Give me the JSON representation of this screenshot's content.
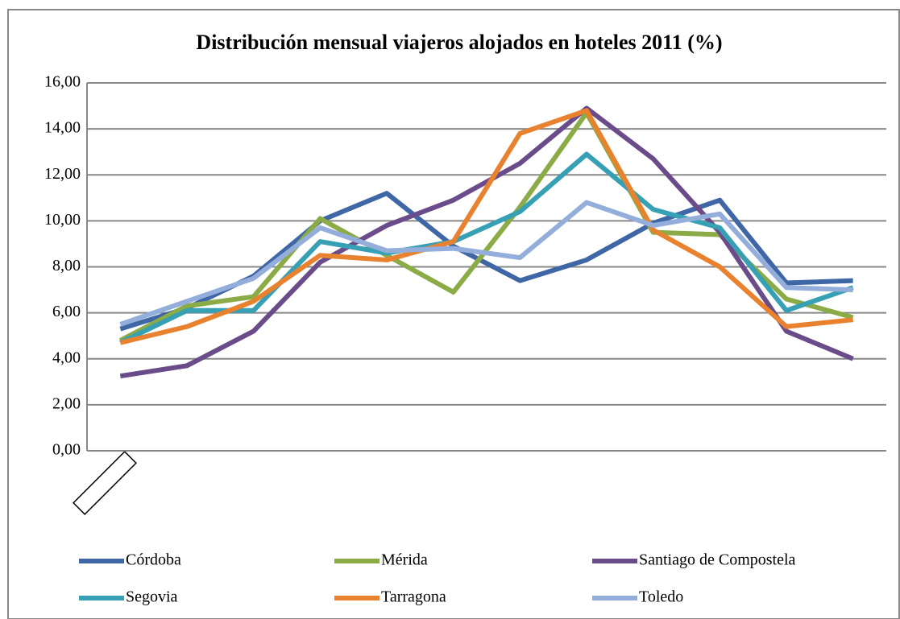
{
  "chart_data": {
    "type": "line",
    "title": "Distribución mensual viajeros alojados en hoteles 2011 (%)",
    "categories": [
      null,
      null,
      null,
      null,
      null,
      null,
      null,
      null,
      null,
      null,
      null,
      null
    ],
    "series": [
      {
        "name": "Córdoba",
        "color": "#3f67a6",
        "values": [
          5.3,
          6.2,
          7.6,
          10.0,
          11.2,
          8.9,
          7.4,
          8.3,
          9.9,
          10.9,
          7.3,
          7.4
        ]
      },
      {
        "name": "Mérida",
        "color": "#8aab45",
        "values": [
          4.8,
          6.3,
          6.7,
          10.1,
          8.5,
          6.9,
          10.6,
          14.7,
          9.5,
          9.4,
          6.6,
          5.8
        ]
      },
      {
        "name": "Santiago de Compostela",
        "color": "#6b4c8a",
        "values": [
          3.25,
          3.7,
          5.2,
          8.2,
          9.8,
          10.9,
          12.5,
          14.9,
          12.7,
          9.5,
          5.2,
          4.0
        ]
      },
      {
        "name": "Segovia",
        "color": "#37a0b5",
        "values": [
          4.7,
          6.1,
          6.1,
          9.1,
          8.6,
          9.1,
          10.4,
          12.9,
          10.5,
          9.7,
          6.1,
          7.1
        ]
      },
      {
        "name": "Tarragona",
        "color": "#e8822f",
        "values": [
          4.7,
          5.4,
          6.5,
          8.5,
          8.3,
          9.1,
          13.8,
          14.8,
          9.6,
          8.0,
          5.4,
          5.7
        ]
      },
      {
        "name": "Toledo",
        "color": "#93aedb",
        "values": [
          5.5,
          6.5,
          7.5,
          9.7,
          8.7,
          8.8,
          8.4,
          10.8,
          9.8,
          10.3,
          7.1,
          7.0
        ]
      }
    ],
    "ylim": [
      0,
      16
    ],
    "yticks": [
      {
        "value": 0,
        "label": "0,00"
      },
      {
        "value": 2,
        "label": "2,00"
      },
      {
        "value": 4,
        "label": "4,00"
      },
      {
        "value": 6,
        "label": "6,00"
      },
      {
        "value": 8,
        "label": "8,00"
      },
      {
        "value": 10,
        "label": "10,00"
      },
      {
        "value": 12,
        "label": "12,00"
      },
      {
        "value": 14,
        "label": "14,00"
      },
      {
        "value": 16,
        "label": "16,00"
      }
    ],
    "grid": true,
    "legend": "bottom"
  }
}
